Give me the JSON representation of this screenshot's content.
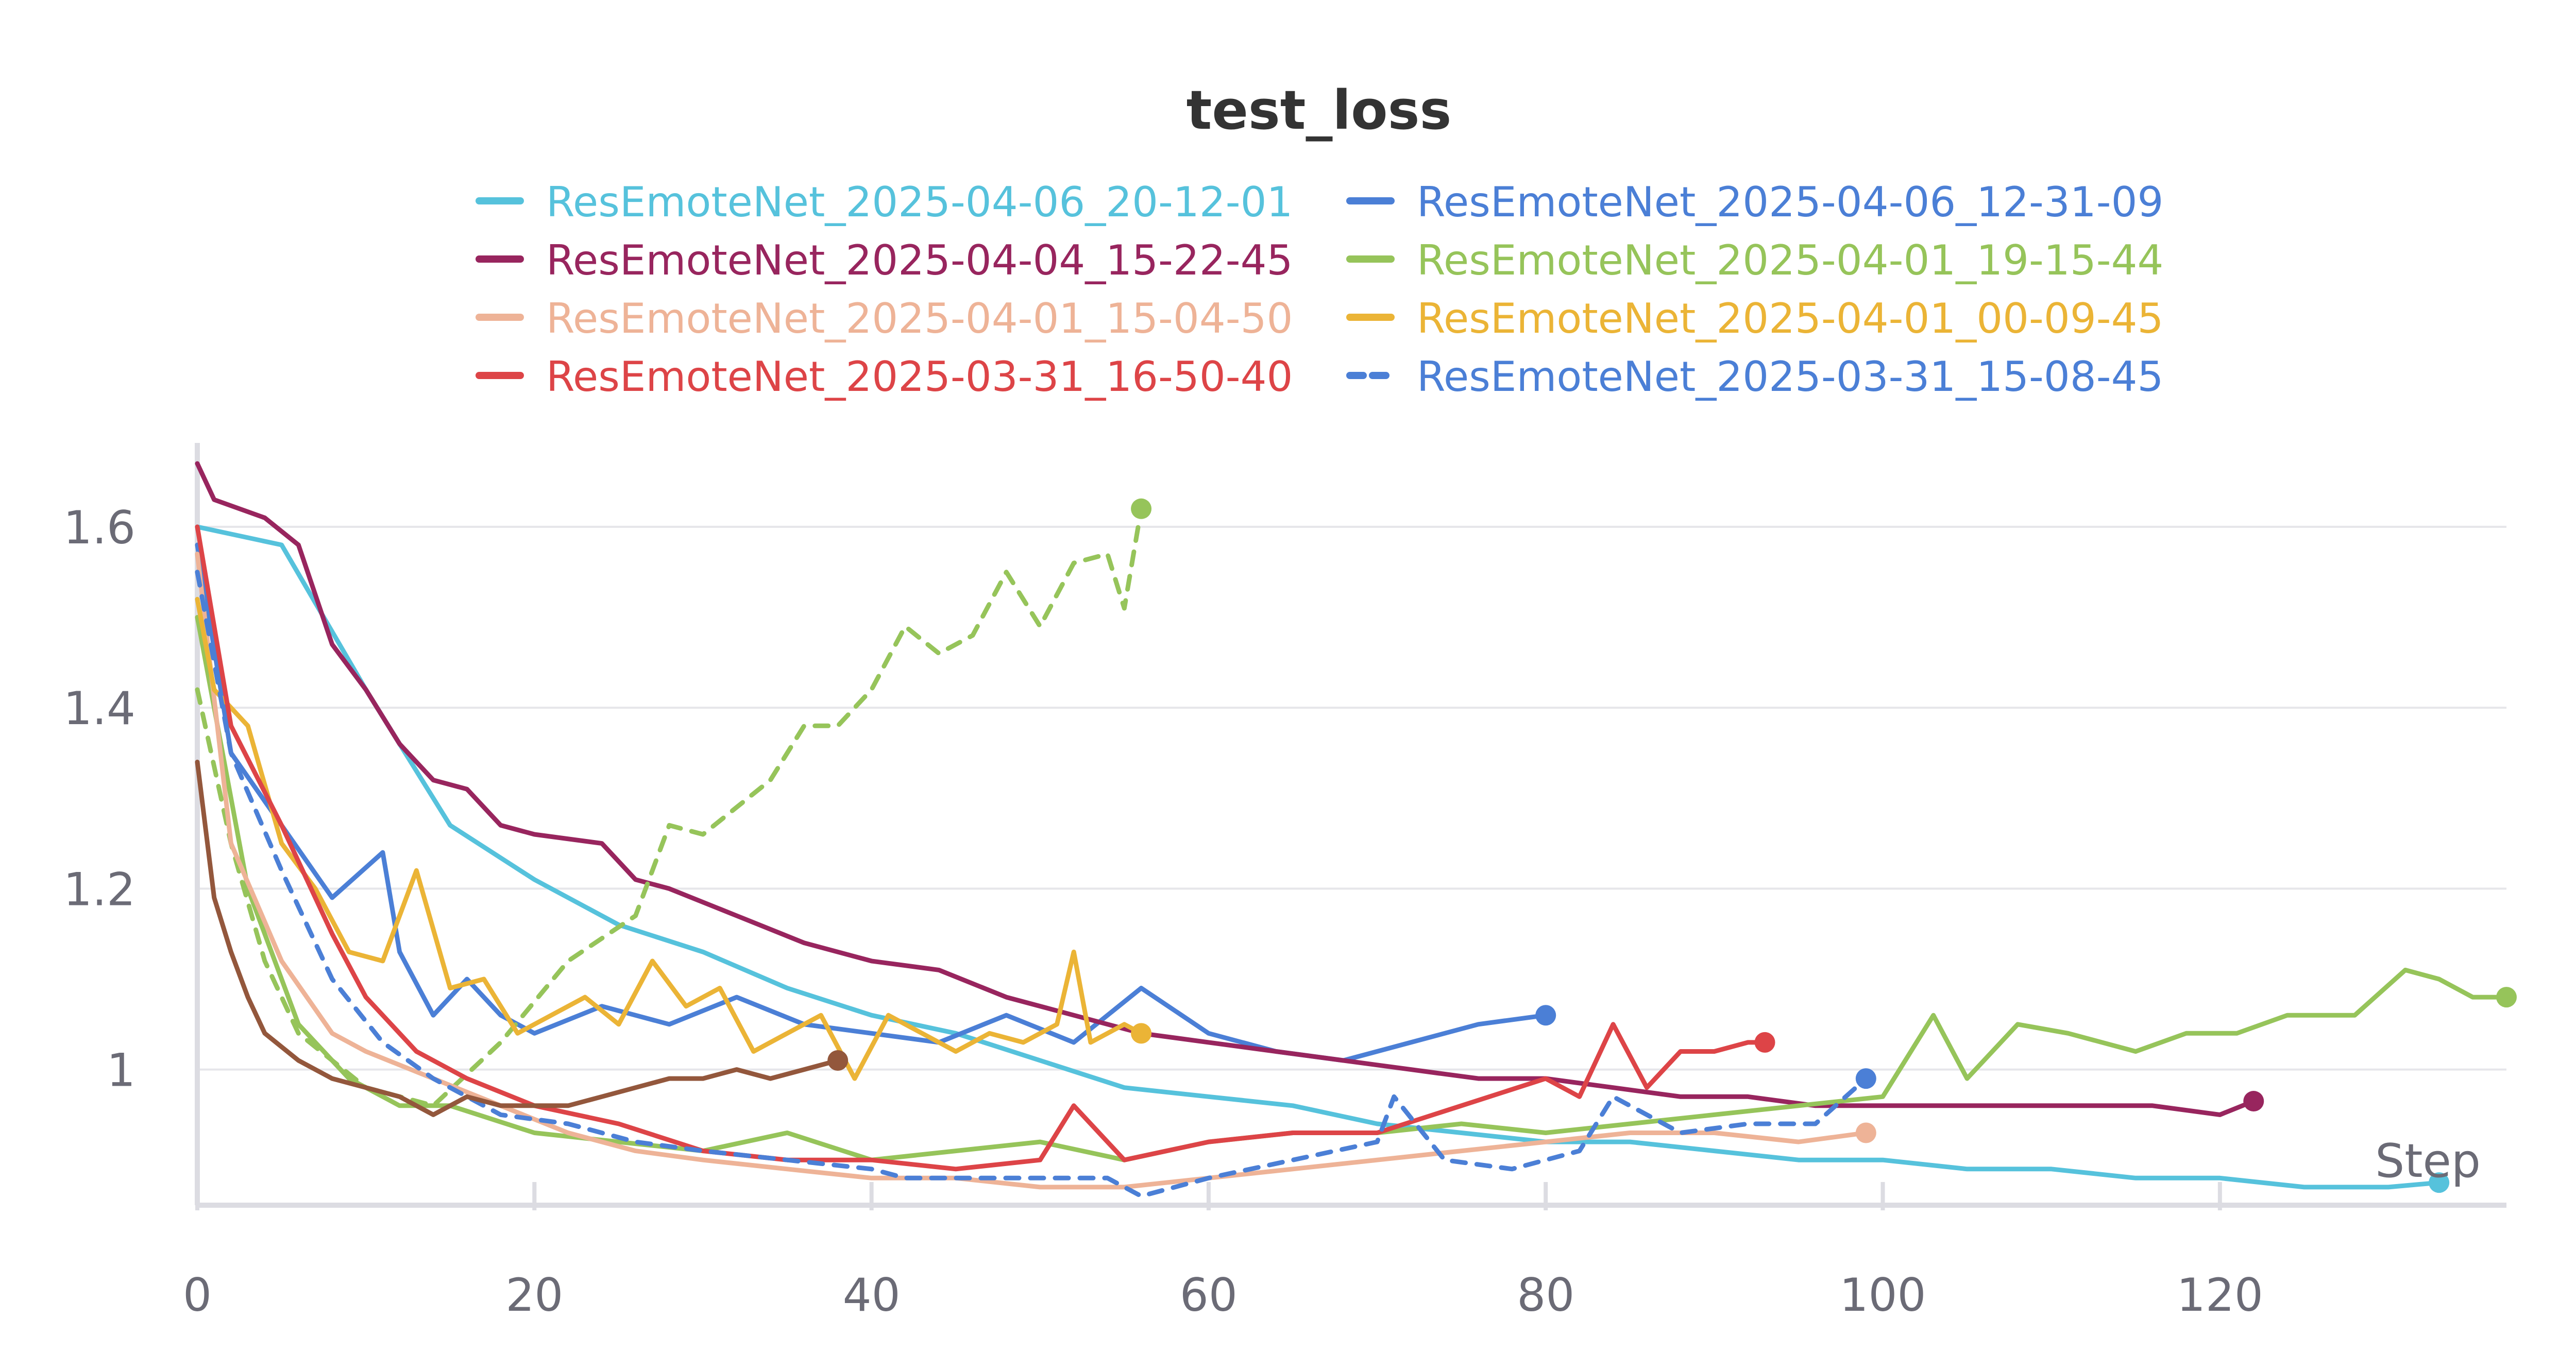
{
  "chart_data": {
    "type": "line",
    "title": "test_loss",
    "xlabel": "Step",
    "ylabel": "",
    "xlim": [
      0,
      137
    ],
    "ylim": [
      0.85,
      1.67
    ],
    "x_ticks": [
      0,
      20,
      40,
      60,
      80,
      100,
      120
    ],
    "y_ticks": [
      {
        "value": 1.0,
        "label": "1"
      },
      {
        "value": 1.2,
        "label": "1.2"
      },
      {
        "value": 1.4,
        "label": "1.4"
      },
      {
        "value": 1.6,
        "label": "1.6"
      }
    ],
    "grid": true,
    "legend_position": "top",
    "legend": [
      {
        "name": "ResEmoteNet_2025-04-06_20-12-01",
        "color": "#56c2dc",
        "dashed": false
      },
      {
        "name": "ResEmoteNet_2025-04-06_12-31-09",
        "color": "#4b7fd6",
        "dashed": false
      },
      {
        "name": "ResEmoteNet_2025-04-04_15-22-45",
        "color": "#98255e",
        "dashed": false
      },
      {
        "name": "ResEmoteNet_2025-04-01_19-15-44",
        "color": "#96c45a",
        "dashed": false
      },
      {
        "name": "ResEmoteNet_2025-04-01_15-04-50",
        "color": "#eeb397",
        "dashed": false
      },
      {
        "name": "ResEmoteNet_2025-04-01_00-09-45",
        "color": "#ebb436",
        "dashed": false
      },
      {
        "name": "ResEmoteNet_2025-03-31_16-50-40",
        "color": "#dd4447",
        "dashed": false
      },
      {
        "name": "ResEmoteNet_2025-03-31_15-08-45",
        "color": "#4b7fd6",
        "dashed": true
      }
    ],
    "series": [
      {
        "color": "#56c2dc",
        "dashed": false,
        "x": [
          0,
          5,
          10,
          15,
          20,
          25,
          30,
          35,
          40,
          45,
          50,
          55,
          60,
          65,
          70,
          75,
          80,
          85,
          90,
          95,
          100,
          105,
          110,
          115,
          120,
          125,
          130,
          133
        ],
        "y": [
          1.6,
          1.58,
          1.42,
          1.27,
          1.21,
          1.16,
          1.13,
          1.09,
          1.06,
          1.04,
          1.01,
          0.98,
          0.97,
          0.96,
          0.94,
          0.93,
          0.92,
          0.92,
          0.91,
          0.9,
          0.9,
          0.89,
          0.89,
          0.88,
          0.88,
          0.87,
          0.87,
          0.875
        ]
      },
      {
        "color": "#4b7fd6",
        "dashed": false,
        "x": [
          0,
          2,
          5,
          8,
          11,
          12,
          14,
          16,
          18,
          20,
          24,
          28,
          32,
          36,
          40,
          44,
          48,
          52,
          56,
          60,
          64,
          68,
          72,
          76,
          80
        ],
        "y": [
          1.58,
          1.35,
          1.27,
          1.19,
          1.24,
          1.13,
          1.06,
          1.1,
          1.06,
          1.04,
          1.07,
          1.05,
          1.08,
          1.05,
          1.04,
          1.03,
          1.06,
          1.03,
          1.09,
          1.04,
          1.02,
          1.01,
          1.03,
          1.05,
          1.06
        ]
      },
      {
        "color": "#98255e",
        "dashed": false,
        "x": [
          0,
          1,
          4,
          6,
          8,
          10,
          12,
          14,
          16,
          18,
          20,
          24,
          26,
          28,
          32,
          36,
          40,
          44,
          48,
          52,
          56,
          60,
          64,
          68,
          72,
          76,
          80,
          84,
          88,
          92,
          96,
          100,
          104,
          108,
          112,
          116,
          120,
          122
        ],
        "y": [
          1.67,
          1.63,
          1.61,
          1.58,
          1.47,
          1.42,
          1.36,
          1.32,
          1.31,
          1.27,
          1.26,
          1.25,
          1.21,
          1.2,
          1.17,
          1.14,
          1.12,
          1.11,
          1.08,
          1.06,
          1.04,
          1.03,
          1.02,
          1.01,
          1.0,
          0.99,
          0.99,
          0.98,
          0.97,
          0.97,
          0.96,
          0.96,
          0.96,
          0.96,
          0.96,
          0.96,
          0.95,
          0.965
        ]
      },
      {
        "color": "#96c45a",
        "dashed": false,
        "x": [
          0,
          3,
          6,
          9,
          12,
          15,
          20,
          25,
          30,
          35,
          40,
          45,
          50,
          55,
          60,
          65,
          70,
          75,
          80,
          85,
          90,
          95,
          100,
          103,
          105,
          108,
          111,
          115,
          118,
          121,
          124,
          128,
          131,
          133,
          135,
          137
        ],
        "y": [
          1.5,
          1.2,
          1.05,
          0.99,
          0.96,
          0.96,
          0.93,
          0.92,
          0.91,
          0.93,
          0.9,
          0.91,
          0.92,
          0.9,
          0.92,
          0.93,
          0.93,
          0.94,
          0.93,
          0.94,
          0.95,
          0.96,
          0.97,
          1.06,
          0.99,
          1.05,
          1.04,
          1.02,
          1.04,
          1.04,
          1.06,
          1.06,
          1.11,
          1.1,
          1.08,
          1.08
        ]
      },
      {
        "color": "#96c45a",
        "dashed": true,
        "x": [
          0,
          2,
          4,
          6,
          10,
          14,
          18,
          22,
          26,
          28,
          30,
          32,
          34,
          36,
          38,
          40,
          42,
          44,
          46,
          48,
          50,
          52,
          54,
          55,
          56
        ],
        "y": [
          1.42,
          1.25,
          1.12,
          1.04,
          0.98,
          0.96,
          1.03,
          1.12,
          1.17,
          1.27,
          1.26,
          1.29,
          1.32,
          1.38,
          1.38,
          1.42,
          1.49,
          1.46,
          1.48,
          1.55,
          1.49,
          1.56,
          1.57,
          1.51,
          1.62
        ]
      },
      {
        "color": "#eeb397",
        "dashed": false,
        "x": [
          0,
          2,
          5,
          8,
          10,
          14,
          18,
          22,
          26,
          30,
          35,
          40,
          45,
          50,
          55,
          60,
          65,
          70,
          75,
          80,
          85,
          90,
          95,
          99
        ],
        "y": [
          1.57,
          1.25,
          1.12,
          1.04,
          1.02,
          0.99,
          0.96,
          0.93,
          0.91,
          0.9,
          0.89,
          0.88,
          0.88,
          0.87,
          0.87,
          0.88,
          0.89,
          0.9,
          0.91,
          0.92,
          0.93,
          0.93,
          0.92,
          0.93
        ]
      },
      {
        "color": "#ebb436",
        "dashed": false,
        "x": [
          0,
          1,
          3,
          5,
          7,
          9,
          11,
          13,
          15,
          17,
          19,
          21,
          23,
          25,
          27,
          29,
          31,
          33,
          35,
          37,
          39,
          41,
          43,
          45,
          47,
          49,
          51,
          52,
          53,
          55,
          56
        ],
        "y": [
          1.52,
          1.42,
          1.38,
          1.25,
          1.2,
          1.13,
          1.12,
          1.22,
          1.09,
          1.1,
          1.04,
          1.06,
          1.08,
          1.05,
          1.12,
          1.07,
          1.09,
          1.02,
          1.04,
          1.06,
          0.99,
          1.06,
          1.04,
          1.02,
          1.04,
          1.03,
          1.05,
          1.13,
          1.03,
          1.05,
          1.04
        ]
      },
      {
        "color": "#dd4447",
        "dashed": false,
        "x": [
          0,
          2,
          5,
          8,
          10,
          13,
          16,
          20,
          25,
          30,
          35,
          40,
          45,
          50,
          52,
          55,
          60,
          65,
          70,
          75,
          80,
          82,
          84,
          86,
          88,
          90,
          92,
          93
        ],
        "y": [
          1.6,
          1.38,
          1.27,
          1.15,
          1.08,
          1.02,
          0.99,
          0.96,
          0.94,
          0.91,
          0.9,
          0.9,
          0.89,
          0.9,
          0.96,
          0.9,
          0.92,
          0.93,
          0.93,
          0.96,
          0.99,
          0.97,
          1.05,
          0.98,
          1.02,
          1.02,
          1.03,
          1.03
        ]
      },
      {
        "color": "#4b7fd6",
        "dashed": true,
        "x": [
          0,
          2,
          5,
          8,
          11,
          14,
          18,
          22,
          26,
          30,
          35,
          40,
          42,
          45,
          50,
          54,
          56,
          60,
          65,
          70,
          71,
          74,
          78,
          82,
          84,
          88,
          92,
          96,
          99
        ],
        "y": [
          1.55,
          1.35,
          1.22,
          1.1,
          1.03,
          0.99,
          0.95,
          0.94,
          0.92,
          0.91,
          0.9,
          0.89,
          0.88,
          0.88,
          0.88,
          0.88,
          0.86,
          0.88,
          0.9,
          0.92,
          0.97,
          0.9,
          0.89,
          0.91,
          0.97,
          0.93,
          0.94,
          0.94,
          0.99
        ]
      },
      {
        "color": "#93573c",
        "dashed": false,
        "x": [
          0,
          1,
          2,
          3,
          4,
          6,
          8,
          10,
          12,
          14,
          16,
          18,
          20,
          22,
          24,
          26,
          28,
          30,
          32,
          34,
          36,
          38
        ],
        "y": [
          1.34,
          1.19,
          1.13,
          1.08,
          1.04,
          1.01,
          0.99,
          0.98,
          0.97,
          0.95,
          0.97,
          0.96,
          0.96,
          0.96,
          0.97,
          0.98,
          0.99,
          0.99,
          1.0,
          0.99,
          1.0,
          1.01
        ]
      }
    ]
  }
}
